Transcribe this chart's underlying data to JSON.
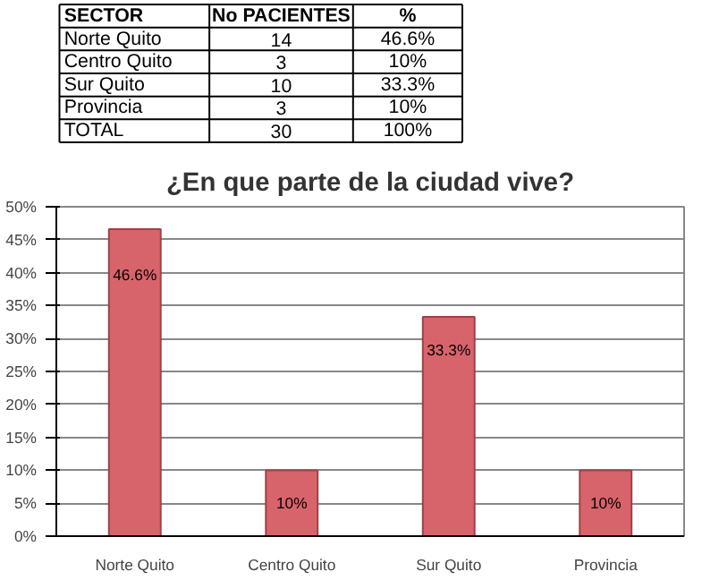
{
  "chart_data": [
    {
      "type": "other",
      "xlabel": "SECTOR",
      "data_labels": true,
      "categories": [
        "Norte Quito",
        "Centro Quito",
        "Sur Quito",
        "Provincia",
        "TOTAL"
      ],
      "series": [
        {
          "name": "No PACIENTES",
          "values": [
            14,
            3,
            10,
            3,
            30
          ]
        },
        {
          "name": "%",
          "values": [
            46.6,
            10,
            33.3,
            10,
            100
          ],
          "value_labels": [
            "46.6%",
            "10%",
            "33.3%",
            "10%",
            "100%"
          ]
        }
      ]
    },
    {
      "type": "bar",
      "title": "¿En que parte de la ciudad vive?",
      "categories": [
        "Norte Quito",
        "Centro Quito",
        "Sur Quito",
        "Provincia"
      ],
      "values": [
        46.6,
        10,
        33.3,
        10
      ],
      "value_labels": [
        "46.6%",
        "10%",
        "33.3%",
        "10%"
      ],
      "color": "#d8646b",
      "ylim": [
        0,
        50
      ],
      "yticks": [
        {
          "value": 0,
          "label": "0%"
        },
        {
          "value": 5,
          "label": "5%"
        },
        {
          "value": 10,
          "label": "10%"
        },
        {
          "value": 15,
          "label": "15%"
        },
        {
          "value": 20,
          "label": "20%"
        },
        {
          "value": 25,
          "label": "25%"
        },
        {
          "value": 30,
          "label": "30%"
        },
        {
          "value": 35,
          "label": "35%"
        },
        {
          "value": 40,
          "label": "40%"
        },
        {
          "value": 45,
          "label": "45%"
        },
        {
          "value": 50,
          "label": "50%"
        }
      ],
      "grid": "y"
    }
  ]
}
